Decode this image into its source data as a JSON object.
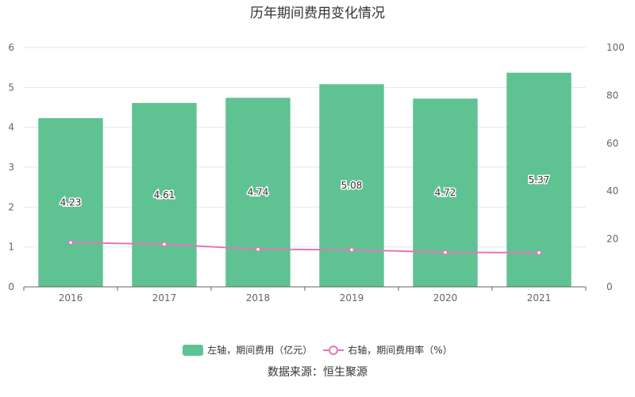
{
  "title": "历年期间费用变化情况",
  "source": "数据来源：恒生聚源",
  "colors": {
    "bar": "#5fc292",
    "line": "#e277b8",
    "grid": "#e6e6ea",
    "axis": "#666666"
  },
  "legend": {
    "bar_label": "左轴，期间费用（亿元）",
    "line_label": "右轴，期间费用率（%）"
  },
  "chart_data": {
    "type": "bar+line",
    "categories": [
      "2016",
      "2017",
      "2018",
      "2019",
      "2020",
      "2021"
    ],
    "series": [
      {
        "name": "左轴，期间费用（亿元）",
        "type": "bar",
        "axis": "left",
        "values": [
          4.23,
          4.61,
          4.74,
          5.08,
          4.72,
          5.37
        ],
        "labels": [
          "4.23",
          "4.61",
          "4.74",
          "5.08",
          "4.72",
          "5.37"
        ]
      },
      {
        "name": "右轴，期间费用率（%）",
        "type": "line",
        "axis": "right",
        "values": [
          18.5,
          17.8,
          15.7,
          15.5,
          14.4,
          14.3
        ]
      }
    ],
    "y_left": {
      "min": 0,
      "max": 6,
      "ticks": [
        "0",
        "1",
        "2",
        "3",
        "4",
        "5",
        "6"
      ]
    },
    "y_right": {
      "min": 0,
      "max": 100,
      "ticks": [
        "0",
        "20",
        "40",
        "60",
        "80",
        "100"
      ]
    },
    "grid": true,
    "legend_position": "bottom"
  }
}
